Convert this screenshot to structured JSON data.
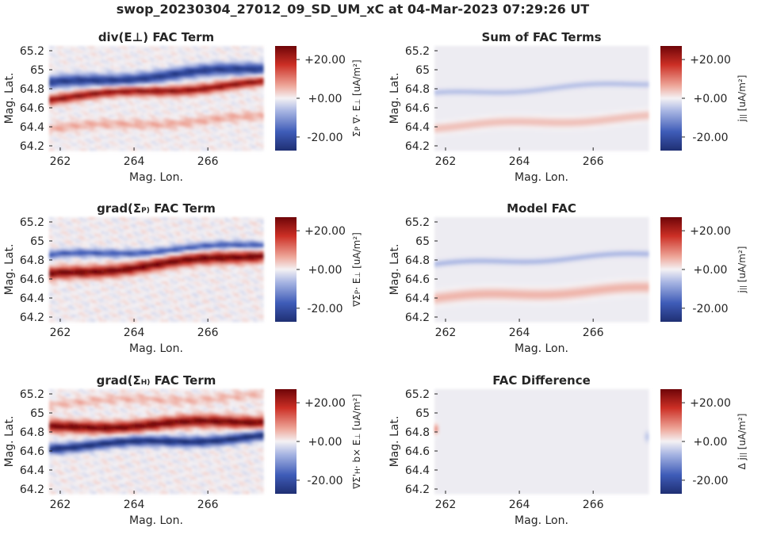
{
  "figure_title": "swop_20230304_27012_09_SD_UM_xC at 04-Mar-2023 07:29:26 UT",
  "colormap": {
    "low": "#1f2f73",
    "mid": "#f4f1f4",
    "high": "#6e0508"
  },
  "colorbar_ticks": [
    "+20.00",
    "+0.00",
    "-20.00"
  ],
  "chart_data": [
    {
      "type": "heatmap",
      "title": "div(E⊥) FAC Term",
      "xlabel": "Mag. Lon.",
      "ylabel": "Mag. Lat.",
      "xlim": [
        261.7,
        267.5
      ],
      "ylim": [
        64.15,
        65.25
      ],
      "xticks": [
        "262",
        "264",
        "266"
      ],
      "yticks": [
        "65.2",
        "65",
        "64.8",
        "64.6",
        "64.4",
        "64.2"
      ],
      "clim": [
        -27,
        27
      ],
      "colorbar_label": "Σ_P ∇· E_⊥ [uA/m²]",
      "bands": [
        {
          "center_lat_start": 64.85,
          "center_lat_end": 65.02,
          "value": -24,
          "width_deg": 0.06
        },
        {
          "center_lat_start": 64.7,
          "center_lat_end": 64.86,
          "value": 24,
          "width_deg": 0.05
        },
        {
          "center_lat_start": 64.38,
          "center_lat_end": 64.5,
          "value": 6,
          "width_deg": 0.05
        }
      ],
      "noise": 0.35
    },
    {
      "type": "heatmap",
      "title": "Sum of FAC Terms",
      "xlabel": "Mag. Lon.",
      "ylabel": "Mag. Lat.",
      "xlim": [
        261.7,
        267.5
      ],
      "ylim": [
        64.15,
        65.25
      ],
      "xticks": [
        "262",
        "264",
        "266"
      ],
      "yticks": [
        "65.2",
        "65",
        "64.8",
        "64.6",
        "64.4",
        "64.2"
      ],
      "clim": [
        -27,
        27
      ],
      "colorbar_label": "j_|| [uA/m²]",
      "bands": [
        {
          "center_lat_start": 64.74,
          "center_lat_end": 64.86,
          "value": -5,
          "width_deg": 0.03
        },
        {
          "center_lat_start": 64.4,
          "center_lat_end": 64.5,
          "value": 5,
          "width_deg": 0.05
        }
      ],
      "noise": 0.0
    },
    {
      "type": "heatmap",
      "title": "grad(Σ_P) FAC Term",
      "xlabel": "Mag. Lon.",
      "ylabel": "Mag. Lat.",
      "xlim": [
        261.7,
        267.5
      ],
      "ylim": [
        64.15,
        65.25
      ],
      "xticks": [
        "262",
        "264",
        "266"
      ],
      "yticks": [
        "65.2",
        "65",
        "64.8",
        "64.6",
        "64.4",
        "64.2"
      ],
      "clim": [
        -27,
        27
      ],
      "colorbar_label": "∇Σ_P· E_⊥ [uA/m²]",
      "bands": [
        {
          "center_lat_start": 64.84,
          "center_lat_end": 64.96,
          "value": -18,
          "width_deg": 0.04
        },
        {
          "center_lat_start": 64.64,
          "center_lat_end": 64.86,
          "value": 27,
          "width_deg": 0.06
        }
      ],
      "noise": 0.4
    },
    {
      "type": "heatmap",
      "title": "Model FAC",
      "xlabel": "Mag. Lon.",
      "ylabel": "Mag. Lat.",
      "xlim": [
        261.7,
        267.5
      ],
      "ylim": [
        64.15,
        65.25
      ],
      "xticks": [
        "262",
        "264",
        "266"
      ],
      "yticks": [
        "65.2",
        "65",
        "64.8",
        "64.6",
        "64.4",
        "64.2"
      ],
      "clim": [
        -27,
        27
      ],
      "colorbar_label": "j_|| [uA/m²]",
      "bands": [
        {
          "center_lat_start": 64.75,
          "center_lat_end": 64.86,
          "value": -6,
          "width_deg": 0.03
        },
        {
          "center_lat_start": 64.4,
          "center_lat_end": 64.5,
          "value": 6,
          "width_deg": 0.06
        }
      ],
      "noise": 0.0
    },
    {
      "type": "heatmap",
      "title": "grad(Σ_H) FAC Term",
      "xlabel": "Mag. Lon.",
      "ylabel": "Mag. Lat.",
      "xlim": [
        261.7,
        267.5
      ],
      "ylim": [
        64.15,
        65.25
      ],
      "xticks": [
        "262",
        "264",
        "266"
      ],
      "yticks": [
        "65.2",
        "65",
        "64.8",
        "64.6",
        "64.4",
        "64.2"
      ],
      "clim": [
        -27,
        27
      ],
      "colorbar_label": "∇Σ'_H· b× E_⊥ [uA/m²]",
      "bands": [
        {
          "center_lat_start": 64.84,
          "center_lat_end": 64.92,
          "value": 27,
          "width_deg": 0.06
        },
        {
          "center_lat_start": 64.64,
          "center_lat_end": 64.75,
          "value": -27,
          "width_deg": 0.05
        },
        {
          "center_lat_start": 65.1,
          "center_lat_end": 65.18,
          "value": 5,
          "width_deg": 0.05
        }
      ],
      "noise": 0.4
    },
    {
      "type": "heatmap",
      "title": "FAC Difference",
      "xlabel": "Mag. Lon.",
      "ylabel": "Mag. Lat.",
      "xlim": [
        261.7,
        267.5
      ],
      "ylim": [
        64.15,
        65.25
      ],
      "xticks": [
        "262",
        "264",
        "266"
      ],
      "yticks": [
        "65.2",
        "65",
        "64.8",
        "64.6",
        "64.4",
        "64.2"
      ],
      "clim": [
        -27,
        27
      ],
      "colorbar_label": "Δ j_|| [uA/m²]",
      "bands": [],
      "noise": 0.0,
      "edge_spots": [
        {
          "lon": 261.75,
          "lat": 64.83,
          "value": 12
        },
        {
          "lon": 267.45,
          "lat": 64.75,
          "value": -5
        }
      ]
    }
  ]
}
